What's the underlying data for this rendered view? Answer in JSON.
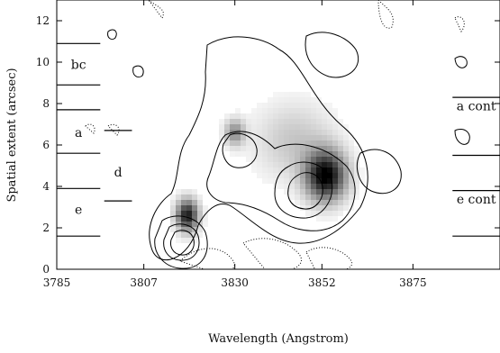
{
  "chart_data": {
    "type": "heatmap",
    "description": "Grayscale spectral image with intensity contours. Dark blobs mark emission; dotted contours mark negative residuals.",
    "xlabel": "Wavelength (Angstrom)",
    "ylabel": "Spatial extent (arcsec)",
    "xlim": [
      3785,
      3897
    ],
    "ylim": [
      0,
      13
    ],
    "x_ticks": [
      3785,
      3807,
      3830,
      3852,
      3875
    ],
    "y_ticks": [
      0,
      2,
      4,
      6,
      8,
      10,
      12
    ],
    "blobs": [
      {
        "x": 3853,
        "y": 4.5,
        "peak": 1.0,
        "sx": 3.6,
        "sy": 0.85
      },
      {
        "x": 3818,
        "y": 2.6,
        "peak": 0.9,
        "sx": 2.0,
        "sy": 0.55
      },
      {
        "x": 3830,
        "y": 6.6,
        "peak": 0.45,
        "sx": 1.8,
        "sy": 0.45
      },
      {
        "x": 3845,
        "y": 6.2,
        "peak": 0.22,
        "sx": 7.0,
        "sy": 1.3
      }
    ],
    "slit_markers_left": {
      "x_range": [
        3785,
        3796
      ],
      "lines_y": [
        10.9,
        8.9,
        7.7,
        5.6,
        3.9,
        1.6
      ],
      "labels": [
        {
          "text": "bc",
          "x": 3790.5,
          "y": 9.9
        },
        {
          "text": "a",
          "x": 3790.5,
          "y": 6.6
        },
        {
          "text": "e",
          "x": 3790.5,
          "y": 2.9
        }
      ]
    },
    "slit_markers_mid": {
      "x_range": [
        3797,
        3804
      ],
      "lines_y": [
        6.7,
        3.3
      ],
      "labels": [
        {
          "text": "d",
          "x": 3800.5,
          "y": 4.7
        }
      ]
    },
    "slit_markers_right": {
      "x_range": [
        3885,
        3897
      ],
      "lines_y": [
        8.3,
        5.5,
        3.8,
        1.6
      ],
      "labels": [
        {
          "text": "a cont",
          "x": 3891,
          "y": 7.9
        },
        {
          "text": "e cont",
          "x": 3891,
          "y": 3.4
        }
      ]
    },
    "grid": false
  }
}
